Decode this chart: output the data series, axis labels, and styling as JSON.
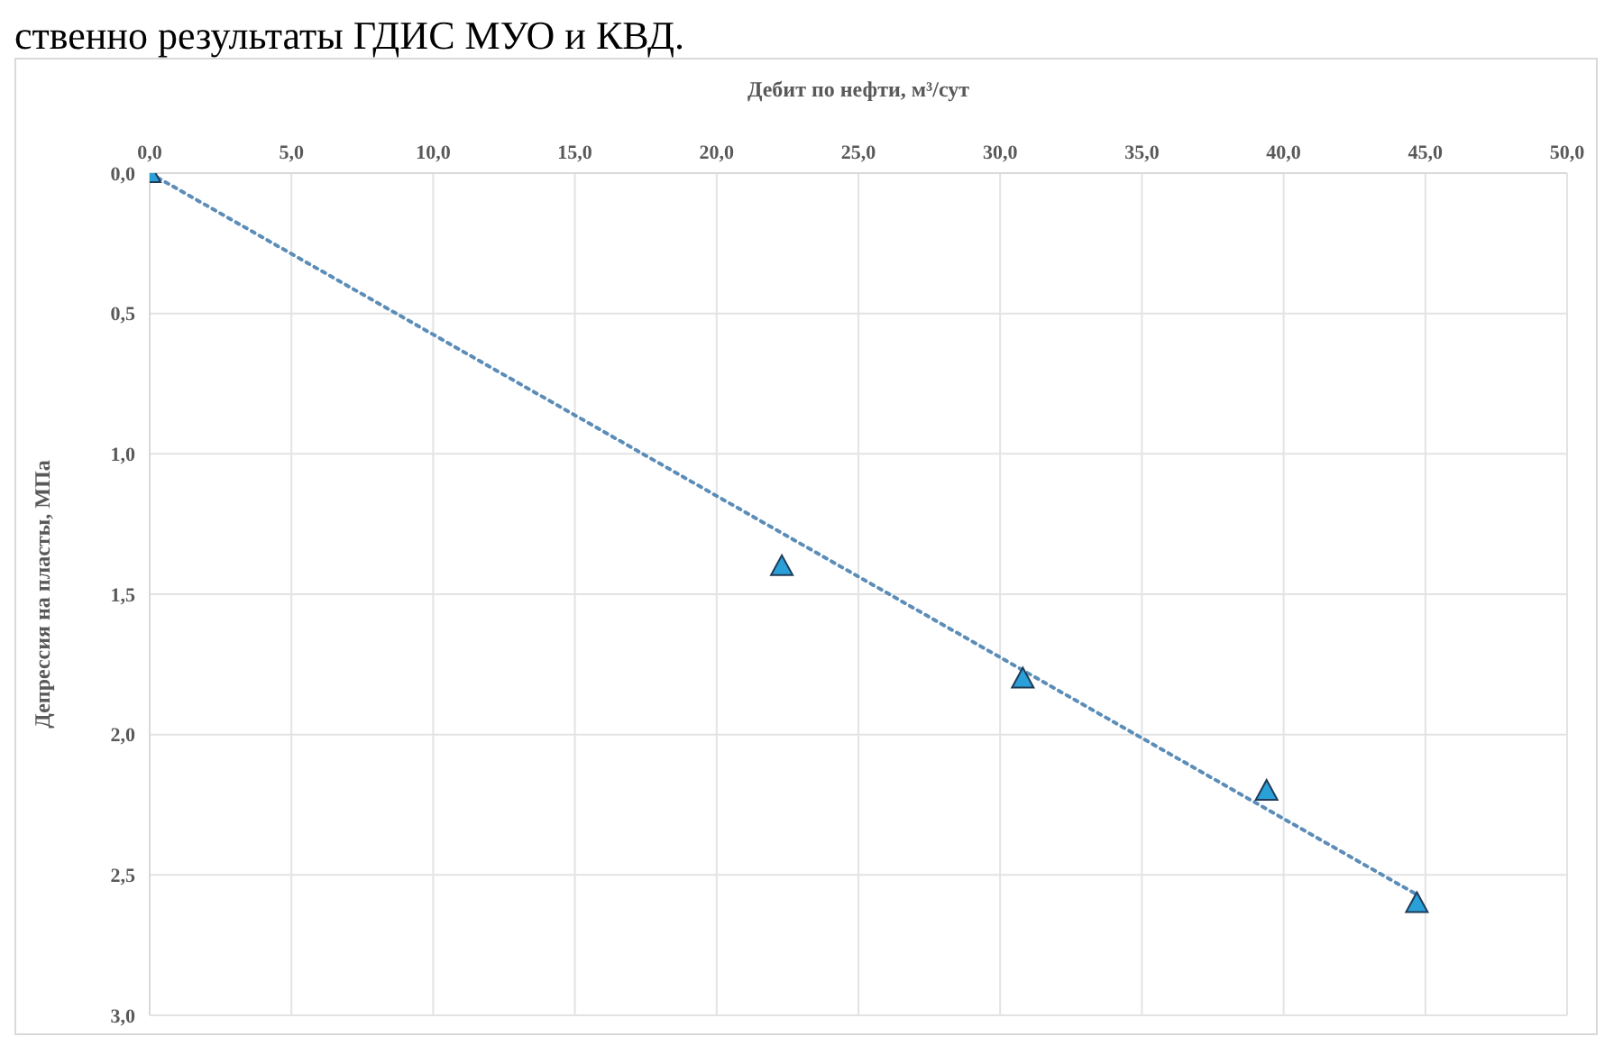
{
  "chart_data": {
    "type": "scatter",
    "annotations": [
      "ственно результаты ГДИС МУО и КВД."
    ],
    "xlabel": "Дебит по нефти, м³/сут",
    "ylabel": "Депрессия на пласты, МПа",
    "x": [
      0,
      22.3,
      30.8,
      39.4,
      44.7
    ],
    "series": [
      {
        "type": "scatter",
        "color": "#2aa0d8",
        "marker": "triangle",
        "values": [
          0,
          1.4,
          1.8,
          2.2,
          2.6
        ]
      },
      {
        "type": "line",
        "color": "#5b8db8",
        "line_style": "dotted",
        "marker": "none",
        "x": [
          0,
          44.7
        ],
        "values": [
          0,
          2.57
        ]
      }
    ],
    "xlim": [
      0,
      50
    ],
    "xticks": [
      {
        "value": 0,
        "label": "0,0"
      },
      {
        "value": 5,
        "label": "5,0"
      },
      {
        "value": 10,
        "label": "10,0"
      },
      {
        "value": 15,
        "label": "15,0"
      },
      {
        "value": 20,
        "label": "20,0"
      },
      {
        "value": 25,
        "label": "25,0"
      },
      {
        "value": 30,
        "label": "30,0"
      },
      {
        "value": 35,
        "label": "35,0"
      },
      {
        "value": 40,
        "label": "40,0"
      },
      {
        "value": 45,
        "label": "45,0"
      },
      {
        "value": 50,
        "label": "50,0"
      }
    ],
    "ylim": [
      3,
      0
    ],
    "yticks": [
      {
        "value": 0,
        "label": "0,0"
      },
      {
        "value": 0.5,
        "label": "0,5"
      },
      {
        "value": 1,
        "label": "1,0"
      },
      {
        "value": 1.5,
        "label": "1,5"
      },
      {
        "value": 2,
        "label": "2,0"
      },
      {
        "value": 2.5,
        "label": "2,5"
      },
      {
        "value": 3,
        "label": "3,0"
      }
    ],
    "grid": true,
    "legend": false
  }
}
